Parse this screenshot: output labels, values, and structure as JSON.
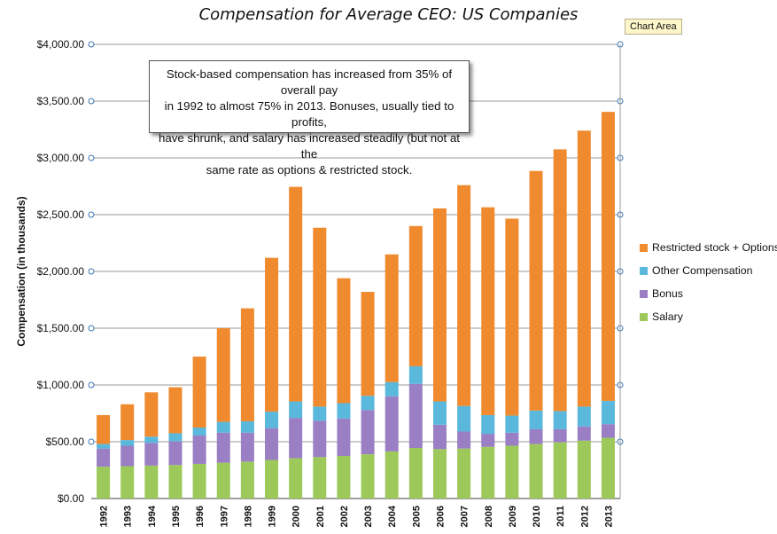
{
  "chart_data": {
    "type": "bar",
    "stacked": true,
    "title": "Compensation for Average CEO: US Companies",
    "ylabel": "Compensation (in thousands)",
    "xlabel": "",
    "ylim": [
      0,
      4000
    ],
    "yticks": [
      "$0.00",
      "$500.00",
      "$1,000.00",
      "$1,500.00",
      "$2,000.00",
      "$2,500.00",
      "$3,000.00",
      "$3,500.00",
      "$4,000.00"
    ],
    "grid": true,
    "legend_position": "right",
    "categories": [
      "1992",
      "1993",
      "1994",
      "1995",
      "1996",
      "1997",
      "1998",
      "1999",
      "2000",
      "2001",
      "2002",
      "2003",
      "2004",
      "2005",
      "2006",
      "2007",
      "2008",
      "2009",
      "2010",
      "2011",
      "2012",
      "2013"
    ],
    "series": [
      {
        "name": "Salary",
        "color": "#9cc95a",
        "values": [
          280,
          285,
          290,
          295,
          305,
          315,
          325,
          340,
          355,
          365,
          375,
          390,
          415,
          445,
          435,
          440,
          455,
          465,
          480,
          495,
          510,
          535
        ]
      },
      {
        "name": "Bonus",
        "color": "#9a7fc4",
        "values": [
          160,
          180,
          200,
          210,
          250,
          265,
          255,
          280,
          355,
          320,
          330,
          390,
          485,
          565,
          215,
          150,
          115,
          115,
          130,
          115,
          125,
          120
        ]
      },
      {
        "name": "Other Compensation",
        "color": "#59b8dc",
        "values": [
          40,
          50,
          55,
          70,
          70,
          95,
          100,
          145,
          145,
          125,
          135,
          125,
          125,
          155,
          205,
          225,
          165,
          150,
          165,
          160,
          175,
          205
        ]
      },
      {
        "name": "Restricted stock + Options",
        "color": "#f08a2e",
        "values": [
          255,
          315,
          390,
          405,
          625,
          825,
          995,
          1355,
          1890,
          1575,
          1100,
          915,
          1125,
          1235,
          1700,
          1945,
          1830,
          1735,
          2110,
          2305,
          2430,
          2545
        ]
      }
    ],
    "annotation": "Stock-based compensation has increased from 35% of overall pay in 1992 to almost 75% in 2013. Bonuses, usually tied to profits, have shrunk, and salary has increased steadily (but not at the same rate as options & restricted stock."
  },
  "chart_area_label": "Chart Area",
  "annotation_lines": [
    "Stock-based compensation has increased from 35% of overall pay",
    "in 1992 to almost 75% in 2013. Bonuses, usually tied to profits,",
    "have shrunk, and salary has increased steadily (but not at the",
    "same rate as options & restricted stock."
  ],
  "legend_order": [
    "Restricted stock + Options",
    "Other Compensation",
    "Bonus",
    "Salary"
  ]
}
